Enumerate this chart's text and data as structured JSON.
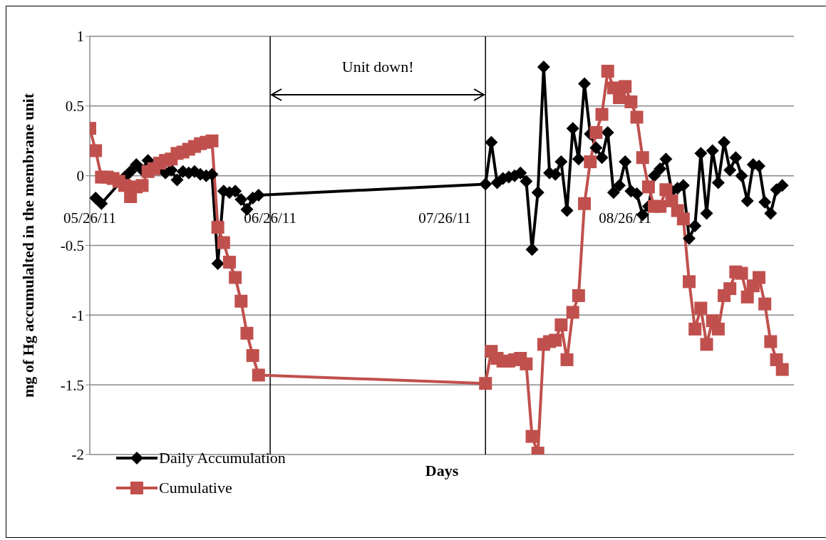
{
  "chart_data": {
    "type": "line",
    "xlabel": "Days",
    "ylabel": "mg of Hg accumulalted in the membrane unit",
    "x": [
      "2011-05-26",
      "2011-05-27",
      "2011-05-28",
      "2011-05-29",
      "2011-05-30",
      "2011-05-31",
      "2011-06-01",
      "2011-06-02",
      "2011-06-03",
      "2011-06-04",
      "2011-06-05",
      "2011-06-06",
      "2011-06-07",
      "2011-06-08",
      "2011-06-09",
      "2011-06-10",
      "2011-06-11",
      "2011-06-12",
      "2011-06-13",
      "2011-06-14",
      "2011-06-15",
      "2011-06-16",
      "2011-06-17",
      "2011-06-18",
      "2011-06-19",
      "2011-06-20",
      "2011-06-21",
      "2011-06-22",
      "2011-06-23",
      "2011-06-24",
      "2011-08-02",
      "2011-08-03",
      "2011-08-04",
      "2011-08-05",
      "2011-08-06",
      "2011-08-07",
      "2011-08-08",
      "2011-08-09",
      "2011-08-10",
      "2011-08-11",
      "2011-08-12",
      "2011-08-13",
      "2011-08-14",
      "2011-08-15",
      "2011-08-16",
      "2011-08-17",
      "2011-08-18",
      "2011-08-19",
      "2011-08-20",
      "2011-08-21",
      "2011-08-22",
      "2011-08-23",
      "2011-08-24",
      "2011-08-25",
      "2011-08-26",
      "2011-08-27",
      "2011-08-28",
      "2011-08-29",
      "2011-08-30",
      "2011-08-31",
      "2011-09-01",
      "2011-09-02",
      "2011-09-03",
      "2011-09-04",
      "2011-09-05",
      "2011-09-06",
      "2011-09-07",
      "2011-09-08",
      "2011-09-09",
      "2011-09-10",
      "2011-09-11",
      "2011-09-12",
      "2011-09-13",
      "2011-09-14",
      "2011-09-15",
      "2011-09-16",
      "2011-09-17",
      "2011-09-18",
      "2011-09-19",
      "2011-09-20",
      "2011-09-21",
      "2011-09-22"
    ],
    "series": [
      {
        "name": "Daily Accumulation",
        "color": "#000000",
        "marker": "diamond",
        "values": [
          null,
          -0.16,
          -0.2,
          null,
          null,
          null,
          -0.01,
          0.03,
          0.08,
          0.04,
          0.11,
          null,
          0.05,
          0.02,
          0.04,
          -0.03,
          0.03,
          0.02,
          0.03,
          0.01,
          0.0,
          0.01,
          -0.63,
          -0.11,
          -0.12,
          -0.11,
          -0.17,
          -0.24,
          -0.16,
          -0.14,
          -0.06,
          0.24,
          -0.05,
          -0.02,
          -0.01,
          0.0,
          0.02,
          -0.04,
          -0.53,
          -0.12,
          0.78,
          0.02,
          0.01,
          0.1,
          -0.25,
          0.34,
          0.12,
          0.66,
          0.3,
          0.2,
          0.13,
          0.31,
          -0.12,
          -0.07,
          0.1,
          -0.11,
          -0.13,
          -0.28,
          -0.22,
          0.0,
          0.05,
          0.12,
          -0.11,
          -0.09,
          -0.07,
          -0.45,
          -0.36,
          0.16,
          -0.27,
          0.18,
          -0.05,
          0.24,
          0.04,
          0.13,
          0.0,
          -0.18,
          0.08,
          0.07,
          -0.19,
          -0.27,
          -0.1,
          -0.07
        ]
      },
      {
        "name": "Cumulative",
        "color": "#c0504d",
        "marker": "square",
        "values": [
          0.34,
          0.18,
          -0.01,
          -0.01,
          -0.02,
          -0.04,
          -0.07,
          -0.15,
          -0.08,
          -0.07,
          0.03,
          0.05,
          0.09,
          0.11,
          0.12,
          0.16,
          0.17,
          0.19,
          0.21,
          0.23,
          0.24,
          0.25,
          -0.37,
          -0.48,
          -0.62,
          -0.73,
          -0.9,
          -1.13,
          -1.29,
          -1.43,
          -1.49,
          -1.26,
          -1.31,
          -1.33,
          -1.33,
          -1.32,
          -1.31,
          -1.35,
          -1.87,
          -1.99,
          -1.21,
          -1.19,
          -1.18,
          -1.07,
          -1.32,
          -0.98,
          -0.86,
          -0.2,
          0.1,
          0.31,
          0.44,
          0.75,
          0.63,
          0.56,
          0.64,
          0.53,
          0.42,
          0.13,
          -0.08,
          -0.22,
          -0.22,
          -0.1,
          -0.18,
          -0.25,
          -0.31,
          -0.76,
          -1.1,
          -0.95,
          -1.21,
          -1.04,
          -1.1,
          -0.86,
          -0.81,
          -0.69,
          -0.7,
          -0.87,
          -0.79,
          -0.73,
          -0.92,
          -1.19,
          -1.32,
          -1.39
        ]
      }
    ],
    "xlim": [
      "2011-05-26",
      "2011-09-24"
    ],
    "xticks": [
      {
        "value": "2011-05-26",
        "label": "05/26/11"
      },
      {
        "value": "2011-06-26",
        "label": "06/26/11"
      },
      {
        "value": "2011-07-26",
        "label": "07/26/11"
      },
      {
        "value": "2011-08-26",
        "label": "08/26/11"
      }
    ],
    "ylim": [
      -2,
      1
    ],
    "yticks": [
      -2,
      -1.5,
      -1,
      -0.5,
      0,
      0.5,
      1
    ],
    "grid": "y",
    "legend": "bottom left",
    "line_style": "solid",
    "ref_lines": [
      {
        "axis": "x",
        "value": "2011-06-26",
        "color": "#000000"
      },
      {
        "axis": "x",
        "value": "2011-08-02",
        "color": "#000000"
      }
    ],
    "annotations": [
      "Unit down!"
    ]
  }
}
